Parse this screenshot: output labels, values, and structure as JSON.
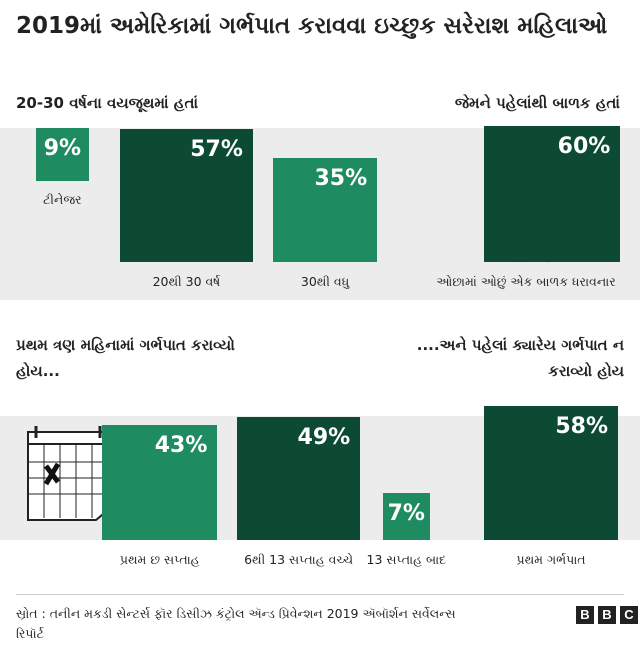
{
  "title": "2019માં અમેરિકામાં ગર્ભપાત કરાવવા ઇચ્છુક સરેરાશ મહિલાઓ",
  "panels": [
    {
      "heading": "20-30 વર્ષના વયજૂથમાં હતાં",
      "items": [
        {
          "label": "ટીનેજર",
          "value": 9,
          "value_label": "9%",
          "color": "#1e8c60"
        },
        {
          "label": "20થી 30 વર્ષ",
          "value": 57,
          "value_label": "57%",
          "color": "#0d4a33"
        },
        {
          "label": "30થી વધુ",
          "value": 35,
          "value_label": "35%",
          "color": "#1e8c60"
        }
      ]
    },
    {
      "heading": "જેમને પહેલાંથી બાળક હતાં",
      "items": [
        {
          "label": "ઓછામાં ઓછું એક બાળક ધરાવનાર",
          "value": 60,
          "value_label": "60%",
          "color": "#0d4a33"
        }
      ]
    },
    {
      "heading": "પ્રથમ ત્રણ મહિનામાં ગર્ભપાત કરાવ્યો હોય...",
      "items": [
        {
          "label": "પ્રથમ છ સપ્તાહ",
          "value": 43,
          "value_label": "43%",
          "color": "#1e8c60"
        },
        {
          "label": "6થી 13 સપ્તાહ વચ્ચે",
          "value": 49,
          "value_label": "49%",
          "color": "#0d4a33"
        },
        {
          "label": "13 સપ્તાહ બાદ",
          "value": 7,
          "value_label": "7%",
          "color": "#1e8c60"
        }
      ]
    },
    {
      "heading": "....અને પહેલાં ક્યારેય ગર્ભપાત ન કરાવ્યો હોય",
      "items": [
        {
          "label": "પ્રથમ ગર્ભપાત",
          "value": 58,
          "value_label": "58%",
          "color": "#0d4a33"
        }
      ]
    }
  ],
  "source": "સ્રોત : તનીન મકડી સેન્ટર્સ ફૉર ડિસીઝ કંટ્રોલ ઍન્ડ પ્રિવેન્શન 2019 ઍબૉર્શન સર્વેલન્સ રિપૉર્ટ",
  "logo": [
    "B",
    "B",
    "C"
  ]
}
